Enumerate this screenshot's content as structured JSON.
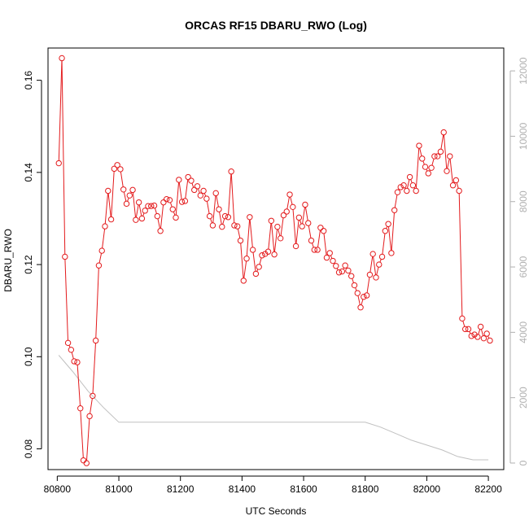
{
  "chart_data": {
    "type": "line",
    "title": "ORCAS RF15 DBARU_RWO (Log)",
    "xlabel": "UTC Seconds",
    "ylabel": "DBARU_RWO",
    "xlim": [
      80770,
      82250
    ],
    "ylim": [
      0.0755,
      0.167
    ],
    "y2lim": [
      -200,
      12700
    ],
    "x_ticks": [
      80800,
      81000,
      81200,
      81400,
      81600,
      81800,
      82000,
      82200
    ],
    "y_ticks": [
      0.08,
      0.1,
      0.12,
      0.14,
      0.16
    ],
    "y_tick_labels": [
      "0.08",
      "0.10",
      "0.12",
      "0.14",
      "0.16"
    ],
    "y2_ticks": [
      0,
      2000,
      4000,
      6000,
      8000,
      10000,
      12000
    ],
    "grid": false,
    "colors": {
      "series": "#e31a1c",
      "secondary": "#c0c0c0",
      "right_axis": "#b0b0b0"
    },
    "series": [
      {
        "x": [
          80805,
          80815,
          80825,
          80835,
          80845,
          80855,
          80865,
          80875,
          80885,
          80895,
          80905,
          80915,
          80925,
          80935,
          80945,
          80955,
          80965,
          80975,
          80985,
          80995,
          81005,
          81015,
          81025,
          81035,
          81045,
          81055,
          81065,
          81075,
          81085,
          81095,
          81105,
          81115,
          81125,
          81135,
          81145,
          81155,
          81165,
          81175,
          81185,
          81195,
          81205,
          81215,
          81225,
          81235,
          81245,
          81255,
          81265,
          81275,
          81285,
          81295,
          81305,
          81315,
          81325,
          81335,
          81345,
          81355,
          81365,
          81375,
          81385,
          81395,
          81405,
          81415,
          81425,
          81435,
          81445,
          81455,
          81465,
          81475,
          81485,
          81495,
          81505,
          81515,
          81525,
          81535,
          81545,
          81555,
          81565,
          81575,
          81585,
          81595,
          81605,
          81615,
          81625,
          81635,
          81645,
          81655,
          81665,
          81675,
          81685,
          81695,
          81705,
          81715,
          81725,
          81735,
          81745,
          81755,
          81765,
          81775,
          81785,
          81795,
          81805,
          81815,
          81825,
          81835,
          81845,
          81855,
          81865,
          81875,
          81885,
          81895,
          81905,
          81915,
          81925,
          81935,
          81945,
          81955,
          81965,
          81975,
          81985,
          81995,
          82005,
          82015,
          82025,
          82035,
          82045,
          82055,
          82065,
          82075,
          82085,
          82095,
          82105,
          82115,
          82125,
          82135,
          82145,
          82155,
          82165,
          82175,
          82185,
          82195,
          82205
        ],
        "y": [
          0.142,
          0.1648,
          0.1217,
          0.103,
          0.1015,
          0.099,
          0.0988,
          0.0888,
          0.0775,
          0.0769,
          0.0871,
          0.0915,
          0.1035,
          0.1198,
          0.123,
          0.1283,
          0.136,
          0.1298,
          0.1408,
          0.1416,
          0.1407,
          0.1363,
          0.1332,
          0.135,
          0.1362,
          0.1297,
          0.1335,
          0.13,
          0.1317,
          0.1327,
          0.1327,
          0.1328,
          0.1305,
          0.1273,
          0.1335,
          0.1342,
          0.134,
          0.132,
          0.1302,
          0.1384,
          0.1336,
          0.1338,
          0.139,
          0.1382,
          0.1362,
          0.137,
          0.135,
          0.136,
          0.1343,
          0.1305,
          0.1285,
          0.1355,
          0.132,
          0.1282,
          0.1305,
          0.1303,
          0.1402,
          0.1285,
          0.1283,
          0.1252,
          0.1165,
          0.1213,
          0.1303,
          0.1232,
          0.118,
          0.1195,
          0.122,
          0.1223,
          0.1228,
          0.1295,
          0.1222,
          0.1282,
          0.1257,
          0.1307,
          0.1315,
          0.1352,
          0.1325,
          0.124,
          0.1302,
          0.1283,
          0.133,
          0.129,
          0.1252,
          0.1232,
          0.1232,
          0.128,
          0.1273,
          0.1215,
          0.1225,
          0.1208,
          0.1197,
          0.1183,
          0.1185,
          0.1198,
          0.1187,
          0.1175,
          0.1155,
          0.1138,
          0.1107,
          0.113,
          0.1133,
          0.1178,
          0.1223,
          0.1172,
          0.12,
          0.1217,
          0.1273,
          0.1288,
          0.1225,
          0.1318,
          0.1357,
          0.1368,
          0.1372,
          0.136,
          0.139,
          0.1372,
          0.136,
          0.1458,
          0.143,
          0.1412,
          0.1398,
          0.141,
          0.1435,
          0.1435,
          0.1445,
          0.1487,
          0.1403,
          0.1435,
          0.1372,
          0.1383,
          0.136,
          0.1083,
          0.106,
          0.106,
          0.1045,
          0.1048,
          0.1043,
          0.1065,
          0.104,
          0.105,
          0.1035
        ]
      }
    ],
    "secondary_series": {
      "x": [
        80805,
        80850,
        80900,
        80950,
        81000,
        81200,
        81400,
        81600,
        81800,
        81850,
        81900,
        81950,
        82000,
        82050,
        82100,
        82150,
        82200
      ],
      "y": [
        3300,
        2800,
        2200,
        1700,
        1250,
        1250,
        1250,
        1250,
        1250,
        1100,
        900,
        700,
        550,
        400,
        200,
        100,
        100
      ]
    }
  }
}
